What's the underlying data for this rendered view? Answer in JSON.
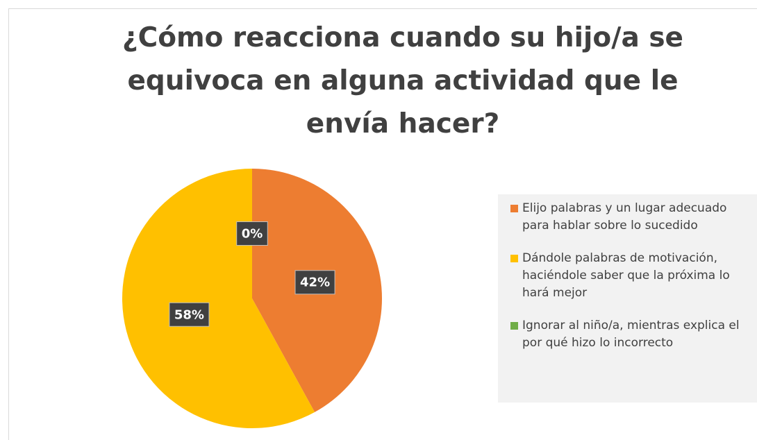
{
  "chart_data": {
    "type": "pie",
    "title": "¿Cómo reacciona cuando su hijo/a se equivoca en alguna actividad que le envía hacer?",
    "categories": [
      "Elijo palabras y un lugar adecuado para hablar sobre lo sucedido",
      "Dándole palabras de motivación, haciéndole saber que la próxima lo hará mejor",
      "Ignorar al niño/a, mientras explica el por qué hizo lo incorrecto"
    ],
    "values": [
      42,
      58,
      0
    ],
    "value_labels": [
      "42%",
      "58%",
      "0%"
    ],
    "colors": [
      "#ED7D31",
      "#FFC000",
      "#70AD47"
    ],
    "legend": "right"
  }
}
